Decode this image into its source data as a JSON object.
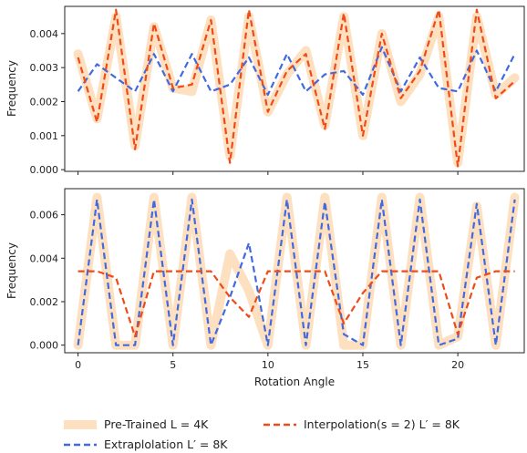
{
  "chart_data": [
    {
      "type": "line",
      "xlabel": "",
      "ylabel": "Frequency",
      "xlim": [
        -0.7,
        23.5
      ],
      "ylim": [
        -5e-05,
        0.0048
      ],
      "yticks": [
        0.0,
        0.001,
        0.002,
        0.003,
        0.004
      ],
      "ytick_labels": [
        "0.000",
        "0.001",
        "0.002",
        "0.003",
        "0.004"
      ],
      "xticks": [
        0,
        5,
        10,
        15,
        20
      ],
      "show_xtick_labels": false,
      "grid": false,
      "x": [
        0,
        1,
        2,
        3,
        4,
        5,
        6,
        7,
        8,
        9,
        10,
        11,
        12,
        13,
        14,
        15,
        16,
        17,
        18,
        19,
        20,
        21,
        22,
        23
      ],
      "series": [
        {
          "name": "Pre-Trained L = 4K",
          "style": "band",
          "color": "#fde0c0",
          "values": [
            0.0034,
            0.0015,
            0.0045,
            0.0007,
            0.0042,
            0.0024,
            0.0023,
            0.0044,
            0.0004,
            0.0045,
            0.0017,
            0.0028,
            0.0035,
            0.0013,
            0.0045,
            0.001,
            0.004,
            0.002,
            0.0028,
            0.0045,
            0.0002,
            0.0045,
            0.0022,
            0.0027
          ]
        },
        {
          "name": "Extraplolation L' = 8K",
          "style": "dashed",
          "color": "#4169e1",
          "values": [
            0.0023,
            0.0031,
            0.0027,
            0.0023,
            0.0034,
            0.0023,
            0.0034,
            0.0023,
            0.0025,
            0.0033,
            0.0022,
            0.0034,
            0.0023,
            0.0028,
            0.0029,
            0.0022,
            0.0036,
            0.0023,
            0.0033,
            0.0024,
            0.0023,
            0.0035,
            0.0023,
            0.0034
          ]
        },
        {
          "name": "Interpolation(s = 2) L' = 8K",
          "style": "dashed",
          "color": "#f04a18",
          "values": [
            0.0033,
            0.0014,
            0.0047,
            0.0006,
            0.0043,
            0.0024,
            0.0025,
            0.0044,
            0.0002,
            0.0047,
            0.0017,
            0.0029,
            0.0034,
            0.0012,
            0.0046,
            0.001,
            0.004,
            0.0021,
            0.0029,
            0.0047,
            0.0001,
            0.0047,
            0.0021,
            0.0026
          ]
        }
      ]
    },
    {
      "type": "line",
      "xlabel": "Rotation Angle",
      "ylabel": "Frequency",
      "xlim": [
        -0.7,
        23.5
      ],
      "ylim": [
        -0.00035,
        0.0072
      ],
      "yticks": [
        0.0,
        0.002,
        0.004,
        0.006
      ],
      "ytick_labels": [
        "0.000",
        "0.002",
        "0.004",
        "0.006"
      ],
      "xticks": [
        0,
        5,
        10,
        15,
        20
      ],
      "xtick_labels": [
        "0",
        "5",
        "10",
        "15",
        "20"
      ],
      "show_xtick_labels": true,
      "grid": false,
      "x": [
        0,
        1,
        2,
        3,
        4,
        5,
        6,
        7,
        8,
        9,
        10,
        11,
        12,
        13,
        14,
        15,
        16,
        17,
        18,
        19,
        20,
        21,
        22,
        23
      ],
      "series": [
        {
          "name": "Pre-Trained L = 4K",
          "style": "band",
          "color": "#fde0c0",
          "values": [
            0.0,
            0.0068,
            0.0,
            0.0,
            0.0068,
            0.0,
            0.0068,
            0.0,
            0.0042,
            0.0025,
            0.0,
            0.0068,
            0.0,
            0.0068,
            0.0,
            0.0,
            0.0068,
            0.0,
            0.0068,
            0.0,
            0.0004,
            0.0064,
            0.0,
            0.0068
          ]
        },
        {
          "name": "Extraplolation L' = 8K",
          "style": "dashed",
          "color": "#4169e1",
          "values": [
            0.0,
            0.0067,
            0.0,
            0.0,
            0.0067,
            0.0,
            0.0067,
            0.0,
            0.0022,
            0.0047,
            0.0,
            0.0067,
            0.0,
            0.0066,
            0.0005,
            0.0,
            0.0067,
            0.0,
            0.0067,
            0.0,
            0.0003,
            0.0065,
            0.0,
            0.0067
          ]
        },
        {
          "name": "Interpolation(s = 2) L' = 8K",
          "style": "dashed",
          "color": "#f04a18",
          "values": [
            0.0034,
            0.0034,
            0.0031,
            0.0004,
            0.0034,
            0.0034,
            0.0034,
            0.0034,
            0.0022,
            0.0013,
            0.0034,
            0.0034,
            0.0034,
            0.0034,
            0.001,
            0.0024,
            0.0034,
            0.0034,
            0.0034,
            0.0034,
            0.0005,
            0.0031,
            0.0034,
            0.0034
          ]
        }
      ]
    }
  ],
  "legend": {
    "placement": "bottom",
    "entries": [
      {
        "label": "Pre-Trained L = 4K",
        "style": "band",
        "color": "#fde0c0"
      },
      {
        "label": "Interpolation(s = 2) L′ = 8K",
        "style": "dashed",
        "color": "#f04a18"
      },
      {
        "label": "Extraplolation L′ = 8K",
        "style": "dashed",
        "color": "#4169e1"
      }
    ]
  }
}
